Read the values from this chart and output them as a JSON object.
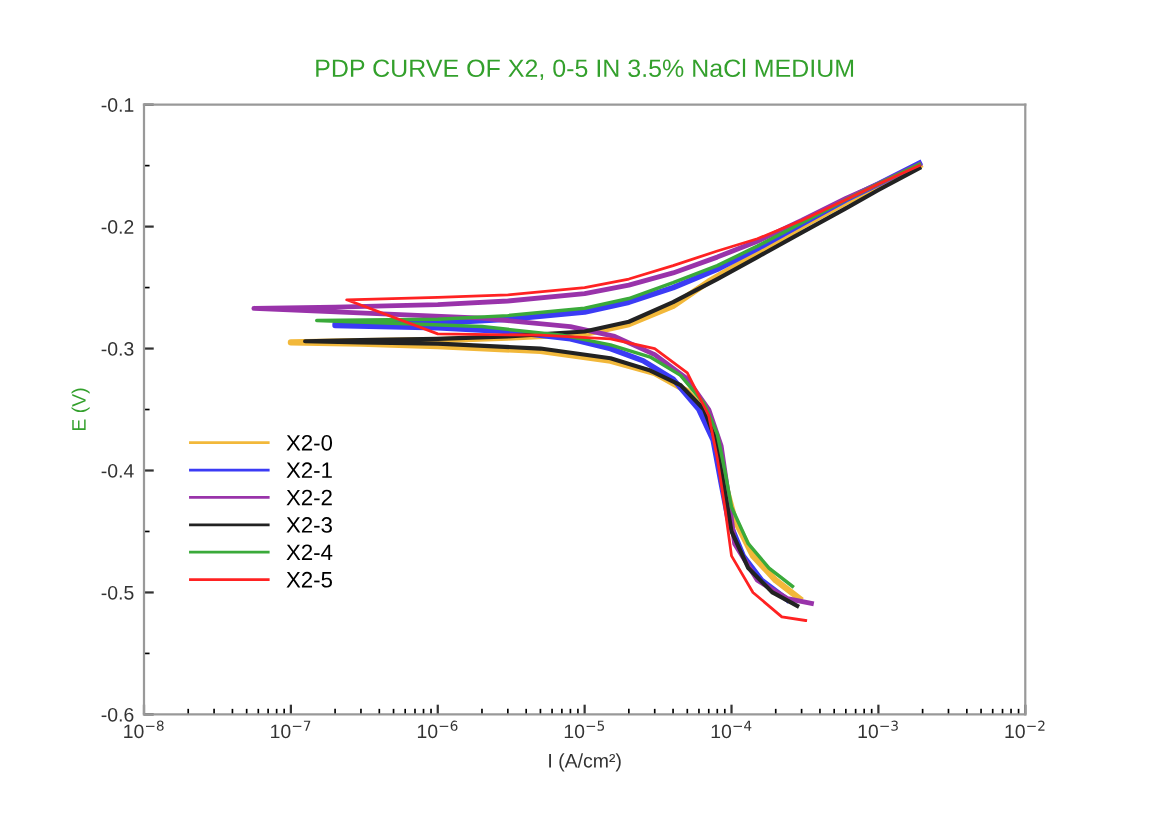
{
  "chart_data": {
    "type": "line",
    "title": "PDP CURVE OF X2, 0-5 IN 3.5% NaCl MEDIUM",
    "xlabel": "I (A/cm²)",
    "ylabel": "E (V)",
    "log": "x",
    "grid": false,
    "legend": "left",
    "line_style": "solid",
    "xlim": [
      1e-08,
      0.01
    ],
    "xticks": [
      {
        "value": 1e-08,
        "label": "10$^{−8}$"
      },
      {
        "value": 1e-07,
        "label": "10$^{−7}$"
      },
      {
        "value": 1e-06,
        "label": "10$^{−6}$"
      },
      {
        "value": 1e-05,
        "label": "10$^{−5}$"
      },
      {
        "value": 0.0001,
        "label": "10$^{−4}$"
      },
      {
        "value": 0.001,
        "label": "10$^{−3}$"
      },
      {
        "value": 0.01,
        "label": "10$^{−2}$"
      }
    ],
    "ylim": [
      -0.6,
      -0.1
    ],
    "yticks": [
      -0.6,
      -0.5,
      -0.4,
      -0.3,
      -0.2,
      -0.1
    ],
    "series": [
      {
        "name": "X2-0",
        "color": "#f2b83a",
        "x": [
          0.00029,
          0.0002,
          0.00014,
          0.000105,
          9e-05,
          8e-05,
          7e-05,
          5e-05,
          3e-05,
          1.5e-05,
          5e-06,
          1e-06,
          3e-07,
          1e-07,
          3e-07,
          1e-06,
          3e-06,
          1e-05,
          2e-05,
          4e-05,
          7e-05,
          0.00015,
          0.0003,
          0.0006,
          0.001,
          0.0019
        ],
        "values": [
          -0.505,
          -0.49,
          -0.47,
          -0.44,
          -0.41,
          -0.38,
          -0.355,
          -0.335,
          -0.32,
          -0.31,
          -0.302,
          -0.298,
          -0.296,
          -0.295,
          -0.294,
          -0.293,
          -0.291,
          -0.288,
          -0.28,
          -0.265,
          -0.245,
          -0.222,
          -0.2,
          -0.18,
          -0.167,
          -0.15
        ]
      },
      {
        "name": "X2-1",
        "color": "#3b3bf5",
        "x": [
          0.00024,
          0.00016,
          0.00012,
          9.5e-05,
          8.5e-05,
          7.5e-05,
          6e-05,
          4e-05,
          2.5e-05,
          1.5e-05,
          8e-06,
          3e-06,
          1e-06,
          2e-07,
          2e-07,
          1e-06,
          3e-06,
          1e-05,
          2e-05,
          4e-05,
          8e-05,
          0.00015,
          0.0003,
          0.0006,
          0.001,
          0.0019
        ],
        "values": [
          -0.506,
          -0.49,
          -0.47,
          -0.44,
          -0.41,
          -0.375,
          -0.35,
          -0.325,
          -0.31,
          -0.3,
          -0.292,
          -0.286,
          -0.283,
          -0.281,
          -0.28,
          -0.279,
          -0.276,
          -0.27,
          -0.262,
          -0.25,
          -0.235,
          -0.218,
          -0.198,
          -0.178,
          -0.165,
          -0.148
        ]
      },
      {
        "name": "X2-2",
        "color": "#9933aa",
        "x": [
          0.00035,
          0.00024,
          0.00015,
          0.000105,
          9.5e-05,
          8.5e-05,
          7e-05,
          5e-05,
          3e-05,
          1.6e-05,
          8e-06,
          2e-06,
          5.6e-08,
          2e-07,
          1e-06,
          3e-06,
          1e-05,
          2e-05,
          4e-05,
          8e-05,
          0.00015,
          0.0003,
          0.0006,
          0.001,
          0.0019
        ],
        "values": [
          -0.509,
          -0.505,
          -0.49,
          -0.46,
          -0.42,
          -0.38,
          -0.35,
          -0.325,
          -0.305,
          -0.29,
          -0.282,
          -0.275,
          -0.267,
          -0.266,
          -0.264,
          -0.261,
          -0.255,
          -0.248,
          -0.238,
          -0.225,
          -0.212,
          -0.195,
          -0.177,
          -0.165,
          -0.149
        ]
      },
      {
        "name": "X2-3",
        "color": "#222222",
        "x": [
          0.00028,
          0.00019,
          0.00013,
          0.0001,
          8.8e-05,
          7.8e-05,
          6.5e-05,
          4.5e-05,
          2.8e-05,
          1.5e-05,
          5e-06,
          1e-06,
          3e-07,
          1.25e-07,
          3e-07,
          1e-06,
          3e-06,
          1e-05,
          2e-05,
          4e-05,
          8e-05,
          0.00015,
          0.0003,
          0.0006,
          0.001,
          0.0019
        ],
        "values": [
          -0.511,
          -0.5,
          -0.48,
          -0.45,
          -0.41,
          -0.375,
          -0.35,
          -0.33,
          -0.318,
          -0.308,
          -0.3,
          -0.296,
          -0.295,
          -0.294,
          -0.293,
          -0.292,
          -0.29,
          -0.286,
          -0.278,
          -0.262,
          -0.243,
          -0.225,
          -0.205,
          -0.185,
          -0.17,
          -0.152
        ]
      },
      {
        "name": "X2-4",
        "color": "#3aaa3a",
        "x": [
          0.00026,
          0.00018,
          0.00013,
          0.0001,
          9e-05,
          8e-05,
          6.5e-05,
          4.5e-05,
          2.8e-05,
          1.5e-05,
          7e-06,
          2e-06,
          1.5e-07,
          1e-06,
          3e-06,
          1e-05,
          2e-05,
          4e-05,
          8e-05,
          0.00015,
          0.0003,
          0.0006,
          0.001,
          0.0019
        ],
        "values": [
          -0.495,
          -0.48,
          -0.46,
          -0.43,
          -0.4,
          -0.37,
          -0.345,
          -0.322,
          -0.307,
          -0.297,
          -0.289,
          -0.282,
          -0.277,
          -0.276,
          -0.273,
          -0.267,
          -0.259,
          -0.246,
          -0.232,
          -0.216,
          -0.197,
          -0.178,
          -0.165,
          -0.149
        ]
      },
      {
        "name": "X2-5",
        "color": "#ff2222",
        "x": [
          0.00032,
          0.00022,
          0.00014,
          0.0001,
          9e-05,
          8e-05,
          7e-05,
          5e-05,
          3e-05,
          1.5e-05,
          5e-06,
          1e-06,
          2.4e-07,
          1e-06,
          3e-06,
          1e-05,
          2e-05,
          4e-05,
          8e-05,
          0.00015,
          0.0003,
          0.0006,
          0.001,
          0.0019
        ],
        "values": [
          -0.523,
          -0.52,
          -0.5,
          -0.47,
          -0.43,
          -0.39,
          -0.355,
          -0.32,
          -0.3,
          -0.292,
          -0.289,
          -0.288,
          -0.26,
          -0.258,
          -0.256,
          -0.25,
          -0.243,
          -0.232,
          -0.22,
          -0.21,
          -0.195,
          -0.178,
          -0.165,
          -0.15
        ]
      }
    ]
  }
}
